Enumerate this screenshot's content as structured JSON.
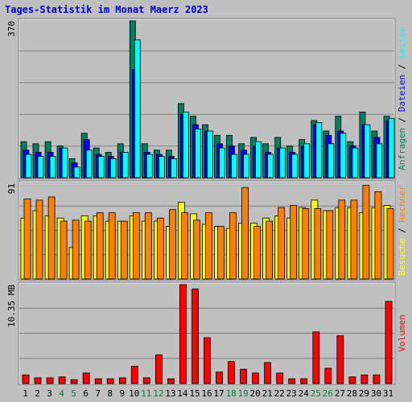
{
  "title": "Tages-Statistik im Monat Maerz 2023",
  "colors": {
    "title": "#0000cc",
    "anfragen": "#008060",
    "dateien": "#0000ff",
    "seiten": "#00ffff",
    "besuche": "#ffff00",
    "rechner": "#ff8000",
    "volumen": "#ff0000",
    "weekend_label": "#008040",
    "panel_bg": "#c0c0c0"
  },
  "chart_data": [
    {
      "type": "bar",
      "panel": "top",
      "ymax_label": "370",
      "right_label": {
        "parts": [
          {
            "text": "Anfragen",
            "color": "#008060"
          },
          {
            "text": " / ",
            "color": "#000000"
          },
          {
            "text": "Dateien",
            "color": "#0000ff"
          },
          {
            "text": " / ",
            "color": "#000000"
          },
          {
            "text": "Seiten",
            "color": "#00ffff"
          }
        ]
      },
      "ylim": [
        0,
        370
      ],
      "categories": [
        "1",
        "2",
        "3",
        "4",
        "5",
        "6",
        "7",
        "8",
        "9",
        "10",
        "11",
        "12",
        "13",
        "14",
        "15",
        "16",
        "17",
        "18",
        "19",
        "20",
        "21",
        "22",
        "23",
        "24",
        "25",
        "26",
        "27",
        "28",
        "29",
        "30",
        "31"
      ],
      "series": [
        {
          "name": "Anfragen",
          "color": "#008060",
          "values": [
            85,
            80,
            85,
            75,
            45,
            105,
            70,
            60,
            80,
            370,
            80,
            65,
            65,
            175,
            145,
            125,
            100,
            100,
            80,
            95,
            80,
            95,
            75,
            90,
            135,
            110,
            145,
            85,
            155,
            110,
            145
          ]
        },
        {
          "name": "Dateien",
          "color": "#0000ff",
          "values": [
            65,
            60,
            60,
            70,
            35,
            90,
            55,
            50,
            60,
            255,
            60,
            55,
            50,
            150,
            125,
            110,
            80,
            75,
            65,
            75,
            60,
            70,
            60,
            75,
            125,
            100,
            110,
            75,
            125,
            95,
            135
          ]
        },
        {
          "name": "Seiten",
          "color": "#00ffff",
          "values": [
            55,
            50,
            50,
            70,
            25,
            65,
            50,
            45,
            60,
            325,
            55,
            50,
            45,
            155,
            115,
            110,
            70,
            55,
            55,
            85,
            55,
            70,
            55,
            80,
            130,
            80,
            105,
            70,
            125,
            80,
            140
          ]
        }
      ]
    },
    {
      "type": "bar",
      "panel": "middle",
      "ymax_label": "91",
      "right_label": {
        "parts": [
          {
            "text": "Besuche",
            "color": "#ffff00"
          },
          {
            "text": " / ",
            "color": "#000000"
          },
          {
            "text": "Rechner",
            "color": "#ff8000"
          }
        ]
      },
      "ylim": [
        0,
        91
      ],
      "categories": [
        "1",
        "2",
        "3",
        "4",
        "5",
        "6",
        "7",
        "8",
        "9",
        "10",
        "11",
        "12",
        "13",
        "14",
        "15",
        "16",
        "17",
        "18",
        "19",
        "20",
        "21",
        "22",
        "23",
        "24",
        "25",
        "26",
        "27",
        "28",
        "29",
        "30",
        "31"
      ],
      "series": [
        {
          "name": "Besuche",
          "color": "#ffff00",
          "values": [
            58,
            65,
            60,
            58,
            30,
            60,
            60,
            55,
            55,
            60,
            55,
            55,
            50,
            73,
            62,
            52,
            50,
            48,
            53,
            53,
            58,
            60,
            58,
            68,
            75,
            65,
            68,
            68,
            63,
            68,
            70
          ]
        },
        {
          "name": "Rechner",
          "color": "#ff8000",
          "values": [
            76,
            75,
            78,
            55,
            56,
            55,
            63,
            63,
            55,
            63,
            63,
            58,
            66,
            63,
            56,
            63,
            50,
            63,
            87,
            50,
            55,
            68,
            70,
            67,
            67,
            65,
            75,
            75,
            89,
            83,
            67
          ]
        }
      ]
    },
    {
      "type": "bar",
      "panel": "bottom",
      "ymax_label": "10.35 MB",
      "right_label": {
        "parts": [
          {
            "text": "Volumen",
            "color": "#ff0000"
          }
        ]
      },
      "ylim": [
        0,
        10.35
      ],
      "categories": [
        "1",
        "2",
        "3",
        "4",
        "5",
        "6",
        "7",
        "8",
        "9",
        "10",
        "11",
        "12",
        "13",
        "14",
        "15",
        "16",
        "17",
        "18",
        "19",
        "20",
        "21",
        "22",
        "23",
        "24",
        "25",
        "26",
        "27",
        "28",
        "29",
        "30",
        "31"
      ],
      "series": [
        {
          "name": "Volumen",
          "color": "#ff0000",
          "values": [
            0.9,
            0.6,
            0.6,
            0.7,
            0.4,
            1.1,
            0.5,
            0.5,
            0.6,
            1.8,
            0.6,
            3.0,
            0.5,
            10.35,
            9.9,
            4.8,
            1.2,
            2.3,
            1.5,
            1.1,
            2.2,
            1.1,
            0.5,
            0.5,
            5.4,
            1.6,
            5.0,
            0.7,
            0.9,
            0.9,
            8.6
          ]
        }
      ]
    }
  ],
  "x_labels": [
    {
      "text": "1",
      "weekend": false
    },
    {
      "text": "2",
      "weekend": false
    },
    {
      "text": "3",
      "weekend": false
    },
    {
      "text": "4",
      "weekend": true
    },
    {
      "text": "5",
      "weekend": true
    },
    {
      "text": "6",
      "weekend": false
    },
    {
      "text": "7",
      "weekend": false
    },
    {
      "text": "8",
      "weekend": false
    },
    {
      "text": "9",
      "weekend": false
    },
    {
      "text": "10",
      "weekend": false
    },
    {
      "text": "11",
      "weekend": true
    },
    {
      "text": "12",
      "weekend": true
    },
    {
      "text": "13",
      "weekend": false
    },
    {
      "text": "14",
      "weekend": false
    },
    {
      "text": "15",
      "weekend": false
    },
    {
      "text": "16",
      "weekend": false
    },
    {
      "text": "17",
      "weekend": false
    },
    {
      "text": "18",
      "weekend": true
    },
    {
      "text": "19",
      "weekend": true
    },
    {
      "text": "20",
      "weekend": false
    },
    {
      "text": "21",
      "weekend": false
    },
    {
      "text": "22",
      "weekend": false
    },
    {
      "text": "23",
      "weekend": false
    },
    {
      "text": "24",
      "weekend": false
    },
    {
      "text": "25",
      "weekend": true
    },
    {
      "text": "26",
      "weekend": true
    },
    {
      "text": "27",
      "weekend": false
    },
    {
      "text": "28",
      "weekend": false
    },
    {
      "text": "29",
      "weekend": false
    },
    {
      "text": "30",
      "weekend": false
    },
    {
      "text": "31",
      "weekend": false
    }
  ]
}
